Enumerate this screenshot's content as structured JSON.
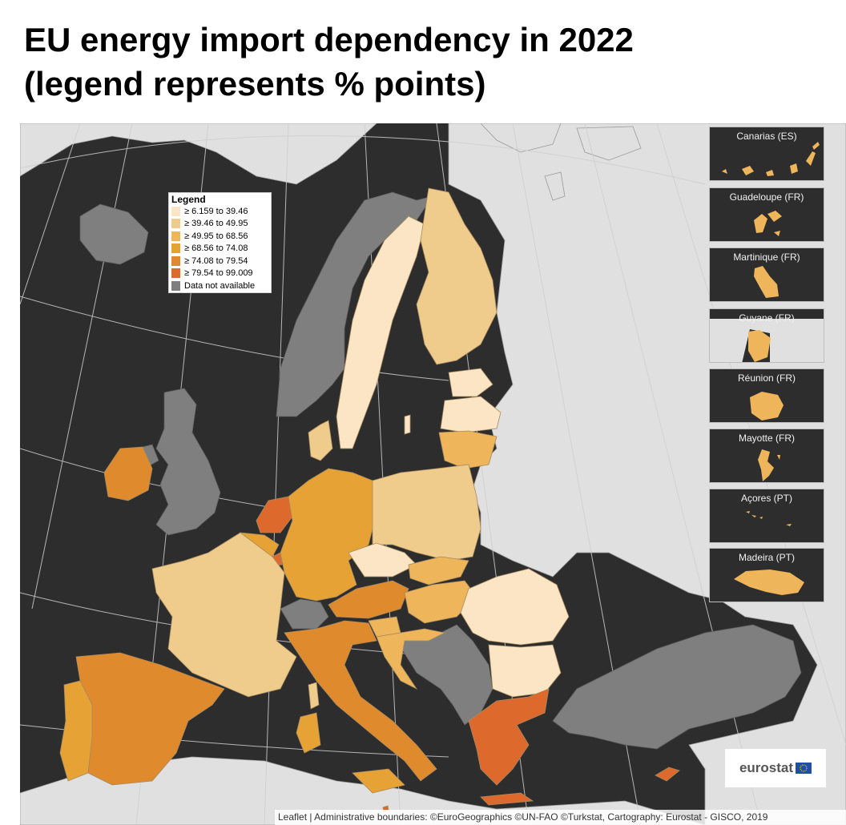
{
  "title_line1": "EU energy import dependency in 2022",
  "title_line2": "(legend represents % points)",
  "legend": {
    "title": "Legend",
    "classes": [
      {
        "label": "≥ 6.159 to 39.46",
        "color": "#fbe5c4"
      },
      {
        "label": "≥ 39.46 to 49.95",
        "color": "#f0cc8c"
      },
      {
        "label": "≥ 49.95 to 68.56",
        "color": "#eeb55a"
      },
      {
        "label": "≥ 68.56 to 74.08",
        "color": "#e6a235"
      },
      {
        "label": "≥ 74.08 to 79.54",
        "color": "#e08a2e"
      },
      {
        "label": "≥ 79.54 to 99.009",
        "color": "#dd6a2c"
      },
      {
        "label": "Data not available",
        "color": "#7f7f7f"
      }
    ]
  },
  "insets": [
    {
      "label": "Canarias (ES)",
      "class_index": 2
    },
    {
      "label": "Guadeloupe (FR)",
      "class_index": 2
    },
    {
      "label": "Martinique (FR)",
      "class_index": 2
    },
    {
      "label": "Guyane (FR)",
      "class_index": 2
    },
    {
      "label": "Réunion (FR)",
      "class_index": 2
    },
    {
      "label": "Mayotte (FR)",
      "class_index": 2
    },
    {
      "label": "Açores (PT)",
      "class_index": 2
    },
    {
      "label": "Madeira (PT)",
      "class_index": 2
    }
  ],
  "colors": {
    "sea": "#2d2d2d",
    "non_eu_land": "#e0e0e0",
    "graticule": "#cccccc",
    "border": "#8c8c8c"
  },
  "logo": {
    "text": "eurostat"
  },
  "attribution": "Leaflet | Administrative boundaries: ©EuroGeographics ©UN-FAO ©Turkstat, Cartography: Eurostat - GISCO, 2019"
}
